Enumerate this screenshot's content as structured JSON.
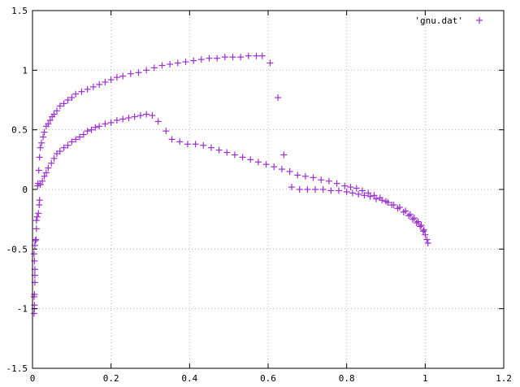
{
  "chart_data": {
    "type": "scatter",
    "title": "",
    "xlabel": "",
    "ylabel": "",
    "xlim": [
      0,
      1.2
    ],
    "ylim": [
      -1.5,
      1.5
    ],
    "x_ticks": [
      0,
      0.2,
      0.4,
      0.6,
      0.8,
      1,
      1.2
    ],
    "x_tick_labels": [
      "0",
      "0.2",
      "0.4",
      "0.6",
      "0.8",
      "1",
      "1.2"
    ],
    "y_ticks": [
      -1.5,
      -1,
      -0.5,
      0,
      0.5,
      1,
      1.5
    ],
    "y_tick_labels": [
      "-1.5",
      "-1",
      "-0.5",
      "0",
      "0.5",
      "1",
      "1.5"
    ],
    "grid": true,
    "legend_position": "top-right",
    "marker": "plus",
    "color": "#9b30d0",
    "series": [
      {
        "name": "'gnu.dat'",
        "points": [
          [
            0.004,
            -1.04
          ],
          [
            0.005,
            -1.0
          ],
          [
            0.005,
            -0.97
          ],
          [
            0.004,
            -0.9
          ],
          [
            0.005,
            -0.88
          ],
          [
            0.006,
            -0.78
          ],
          [
            0.006,
            -0.72
          ],
          [
            0.006,
            -0.67
          ],
          [
            0.005,
            -0.6
          ],
          [
            0.004,
            -0.54
          ],
          [
            0.006,
            -0.47
          ],
          [
            0.007,
            -0.43
          ],
          [
            0.009,
            -0.42
          ],
          [
            0.01,
            -0.33
          ],
          [
            0.01,
            -0.26
          ],
          [
            0.012,
            -0.23
          ],
          [
            0.015,
            -0.2
          ],
          [
            0.017,
            -0.13
          ],
          [
            0.018,
            -0.09
          ],
          [
            0.013,
            0.03
          ],
          [
            0.014,
            0.05
          ],
          [
            0.016,
            0.16
          ],
          [
            0.018,
            0.27
          ],
          [
            0.02,
            0.35
          ],
          [
            0.023,
            0.39
          ],
          [
            0.027,
            0.44
          ],
          [
            0.03,
            0.48
          ],
          [
            0.035,
            0.53
          ],
          [
            0.04,
            0.55
          ],
          [
            0.045,
            0.58
          ],
          [
            0.05,
            0.61
          ],
          [
            0.055,
            0.63
          ],
          [
            0.062,
            0.66
          ],
          [
            0.07,
            0.7
          ],
          [
            0.08,
            0.72
          ],
          [
            0.09,
            0.75
          ],
          [
            0.1,
            0.77
          ],
          [
            0.11,
            0.8
          ],
          [
            0.125,
            0.82
          ],
          [
            0.14,
            0.84
          ],
          [
            0.155,
            0.86
          ],
          [
            0.17,
            0.88
          ],
          [
            0.185,
            0.9
          ],
          [
            0.2,
            0.92
          ],
          [
            0.215,
            0.94
          ],
          [
            0.23,
            0.95
          ],
          [
            0.25,
            0.97
          ],
          [
            0.27,
            0.98
          ],
          [
            0.29,
            1.0
          ],
          [
            0.31,
            1.02
          ],
          [
            0.33,
            1.04
          ],
          [
            0.35,
            1.05
          ],
          [
            0.37,
            1.06
          ],
          [
            0.39,
            1.07
          ],
          [
            0.41,
            1.08
          ],
          [
            0.43,
            1.09
          ],
          [
            0.45,
            1.1
          ],
          [
            0.47,
            1.1
          ],
          [
            0.49,
            1.11
          ],
          [
            0.51,
            1.11
          ],
          [
            0.53,
            1.11
          ],
          [
            0.55,
            1.12
          ],
          [
            0.57,
            1.12
          ],
          [
            0.585,
            1.12
          ],
          [
            0.605,
            1.06
          ],
          [
            0.625,
            0.77
          ],
          [
            0.64,
            0.29
          ],
          [
            0.02,
            0.04
          ],
          [
            0.025,
            0.07
          ],
          [
            0.03,
            0.11
          ],
          [
            0.035,
            0.14
          ],
          [
            0.04,
            0.18
          ],
          [
            0.048,
            0.22
          ],
          [
            0.055,
            0.26
          ],
          [
            0.062,
            0.3
          ],
          [
            0.07,
            0.32
          ],
          [
            0.08,
            0.35
          ],
          [
            0.09,
            0.37
          ],
          [
            0.1,
            0.4
          ],
          [
            0.11,
            0.42
          ],
          [
            0.12,
            0.44
          ],
          [
            0.13,
            0.46
          ],
          [
            0.14,
            0.49
          ],
          [
            0.15,
            0.5
          ],
          [
            0.16,
            0.52
          ],
          [
            0.17,
            0.53
          ],
          [
            0.185,
            0.55
          ],
          [
            0.2,
            0.56
          ],
          [
            0.215,
            0.58
          ],
          [
            0.23,
            0.59
          ],
          [
            0.245,
            0.6
          ],
          [
            0.26,
            0.61
          ],
          [
            0.275,
            0.62
          ],
          [
            0.29,
            0.63
          ],
          [
            0.305,
            0.62
          ],
          [
            0.32,
            0.57
          ],
          [
            0.34,
            0.49
          ],
          [
            0.355,
            0.42
          ],
          [
            0.375,
            0.4
          ],
          [
            0.395,
            0.38
          ],
          [
            0.415,
            0.38
          ],
          [
            0.435,
            0.37
          ],
          [
            0.455,
            0.35
          ],
          [
            0.475,
            0.33
          ],
          [
            0.495,
            0.31
          ],
          [
            0.515,
            0.29
          ],
          [
            0.535,
            0.27
          ],
          [
            0.555,
            0.25
          ],
          [
            0.575,
            0.23
          ],
          [
            0.595,
            0.21
          ],
          [
            0.615,
            0.19
          ],
          [
            0.635,
            0.17
          ],
          [
            0.655,
            0.15
          ],
          [
            0.675,
            0.12
          ],
          [
            0.695,
            0.11
          ],
          [
            0.715,
            0.1
          ],
          [
            0.735,
            0.08
          ],
          [
            0.755,
            0.07
          ],
          [
            0.775,
            0.05
          ],
          [
            0.795,
            0.03
          ],
          [
            0.81,
            0.02
          ],
          [
            0.825,
            0.01
          ],
          [
            0.84,
            -0.01
          ],
          [
            0.855,
            -0.03
          ],
          [
            0.87,
            -0.05
          ],
          [
            0.885,
            -0.07
          ],
          [
            0.9,
            -0.1
          ],
          [
            0.915,
            -0.13
          ],
          [
            0.93,
            -0.16
          ],
          [
            0.945,
            -0.19
          ],
          [
            0.958,
            -0.22
          ],
          [
            0.968,
            -0.25
          ],
          [
            0.978,
            -0.28
          ],
          [
            0.987,
            -0.31
          ],
          [
            0.995,
            -0.35
          ],
          [
            1.0,
            -0.38
          ],
          [
            1.004,
            -0.42
          ],
          [
            1.007,
            -0.45
          ],
          [
            0.66,
            0.02
          ],
          [
            0.68,
            0.0
          ],
          [
            0.7,
            0.0
          ],
          [
            0.72,
            0.0
          ],
          [
            0.74,
            0.0
          ],
          [
            0.76,
            -0.01
          ],
          [
            0.78,
            -0.01
          ],
          [
            0.8,
            -0.02
          ],
          [
            0.815,
            -0.03
          ],
          [
            0.83,
            -0.04
          ],
          [
            0.845,
            -0.05
          ],
          [
            0.86,
            -0.06
          ],
          [
            0.875,
            -0.08
          ],
          [
            0.89,
            -0.09
          ],
          [
            0.905,
            -0.11
          ],
          [
            0.92,
            -0.13
          ],
          [
            0.935,
            -0.15
          ],
          [
            0.95,
            -0.18
          ],
          [
            0.962,
            -0.21
          ],
          [
            0.972,
            -0.24
          ],
          [
            0.982,
            -0.27
          ],
          [
            0.99,
            -0.3
          ],
          [
            0.997,
            -0.34
          ]
        ]
      }
    ]
  }
}
